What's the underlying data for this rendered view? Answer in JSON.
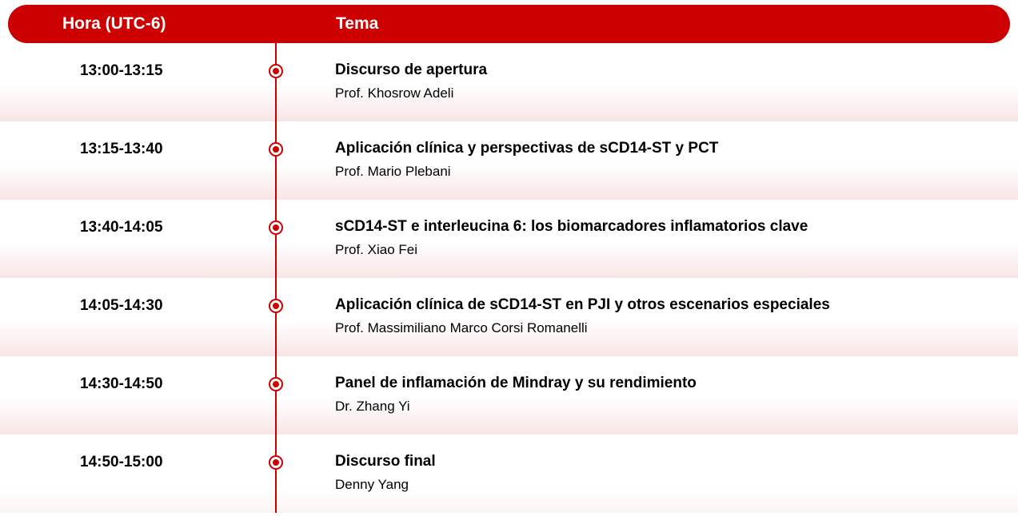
{
  "header": {
    "time_label": "Hora (UTC-6)",
    "topic_label": "Tema"
  },
  "colors": {
    "brand_red": "#cc0000",
    "text": "#000000",
    "header_text": "#ffffff",
    "row_gradient_start": "#ffffff",
    "row_gradient_end": "#f9e5e5"
  },
  "sessions": [
    {
      "time": "13:00-13:15",
      "title": "Discurso de apertura",
      "speaker": "Prof. Khosrow Adeli"
    },
    {
      "time": "13:15-13:40",
      "title": "Aplicación clínica y perspectivas de sCD14-ST y PCT",
      "speaker": "Prof. Mario Plebani"
    },
    {
      "time": "13:40-14:05",
      "title": "sCD14-ST e interleucina 6: los biomarcadores inflamatorios clave",
      "speaker": "Prof. Xiao Fei"
    },
    {
      "time": "14:05-14:30",
      "title": "Aplicación clínica de sCD14-ST en PJI y otros escenarios especiales",
      "speaker": "Prof. Massimiliano Marco Corsi Romanelli"
    },
    {
      "time": "14:30-14:50",
      "title": "Panel de inflamación de Mindray y su rendimiento",
      "speaker": "Dr. Zhang Yi"
    },
    {
      "time": "14:50-15:00",
      "title": "Discurso final",
      "speaker": "Denny Yang"
    }
  ]
}
